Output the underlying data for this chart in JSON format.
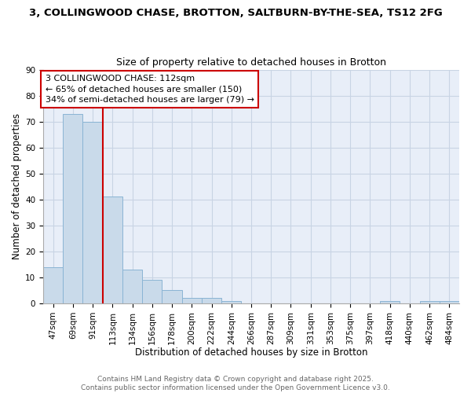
{
  "title_line1": "3, COLLINGWOOD CHASE, BROTTON, SALTBURN-BY-THE-SEA, TS12 2FG",
  "title_line2": "Size of property relative to detached houses in Brotton",
  "xlabel": "Distribution of detached houses by size in Brotton",
  "ylabel": "Number of detached properties",
  "bin_labels": [
    "47sqm",
    "69sqm",
    "91sqm",
    "113sqm",
    "134sqm",
    "156sqm",
    "178sqm",
    "200sqm",
    "222sqm",
    "244sqm",
    "266sqm",
    "287sqm",
    "309sqm",
    "331sqm",
    "353sqm",
    "375sqm",
    "397sqm",
    "418sqm",
    "440sqm",
    "462sqm",
    "484sqm"
  ],
  "bar_heights": [
    14,
    73,
    70,
    41,
    13,
    9,
    5,
    2,
    2,
    1,
    0,
    0,
    0,
    0,
    0,
    0,
    0,
    1,
    0,
    1,
    1
  ],
  "bar_color": "#c9daea",
  "bar_edge_color": "#8ab4d4",
  "vline_x_idx": 3,
  "vline_color": "#cc0000",
  "annotation_line1": "3 COLLINGWOOD CHASE: 112sqm",
  "annotation_line2": "← 65% of detached houses are smaller (150)",
  "annotation_line3": "34% of semi-detached houses are larger (79) →",
  "annotation_box_color": "white",
  "annotation_box_edge": "#cc0000",
  "ylim": [
    0,
    90
  ],
  "yticks": [
    0,
    10,
    20,
    30,
    40,
    50,
    60,
    70,
    80,
    90
  ],
  "grid_color": "#c8d4e4",
  "bg_color": "#e8eef8",
  "footer_text": "Contains HM Land Registry data © Crown copyright and database right 2025.\nContains public sector information licensed under the Open Government Licence v3.0.",
  "title_fontsize": 9.5,
  "subtitle_fontsize": 9,
  "axis_label_fontsize": 8.5,
  "tick_fontsize": 7.5,
  "annotation_fontsize": 8
}
